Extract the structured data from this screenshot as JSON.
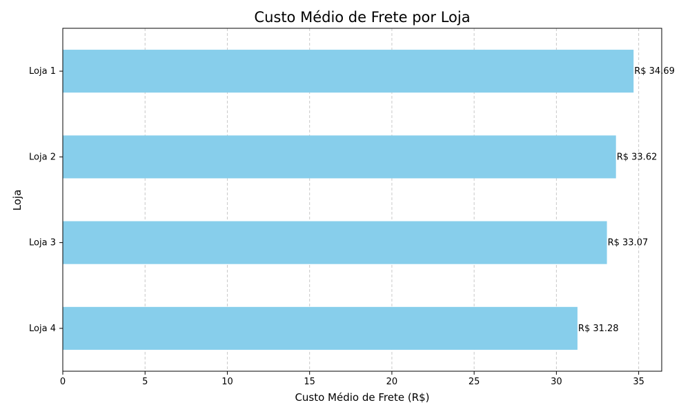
{
  "colors": {
    "bar": "#87ceeb",
    "grid": "#c8c8c8",
    "axis": "#000000"
  },
  "chart_data": {
    "type": "bar",
    "orientation": "horizontal",
    "title": "Custo Médio de Frete por Loja",
    "xlabel": "Custo Médio de Frete (R$)",
    "ylabel": "Loja",
    "categories": [
      "Loja 1",
      "Loja 2",
      "Loja 3",
      "Loja 4"
    ],
    "values": [
      34.69,
      33.62,
      33.07,
      31.28
    ],
    "data_labels": [
      "R$ 34.69",
      "R$ 33.62",
      "R$ 33.07",
      "R$ 31.28"
    ],
    "xlim": [
      0,
      36.4
    ],
    "xticks": [
      0,
      5,
      10,
      15,
      20,
      25,
      30,
      35
    ],
    "grid": "x-dashed",
    "legend": "none"
  }
}
